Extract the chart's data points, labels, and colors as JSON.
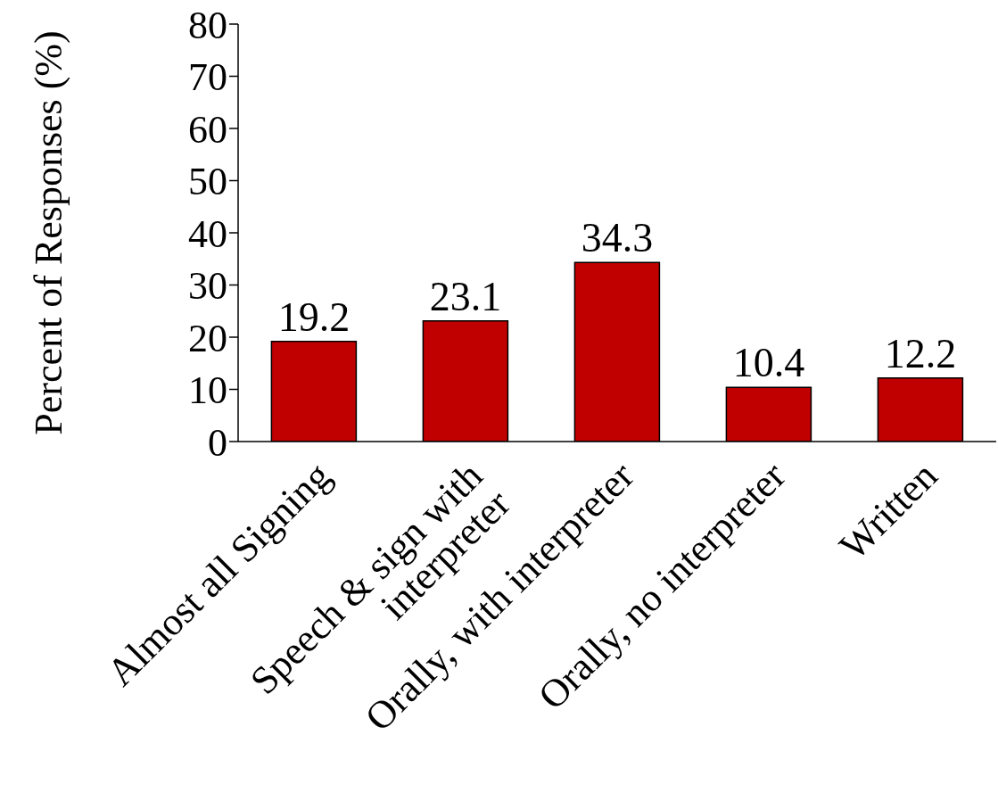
{
  "chart_data": {
    "type": "bar",
    "ylabel": "Percent of Responses (%)",
    "categories": [
      "Almost all Signing",
      "Speech & sign with\ninterpreter",
      "Orally, with interpreter",
      "Orally, no interpreter",
      "Written"
    ],
    "values": [
      19.2,
      23.1,
      34.3,
      10.4,
      12.2
    ],
    "color": "#c00000",
    "data_labels": true,
    "ylim": [
      0,
      80
    ],
    "yticks": [
      0,
      10,
      20,
      30,
      40,
      50,
      60,
      70,
      80
    ],
    "grid": false,
    "legend": false
  }
}
